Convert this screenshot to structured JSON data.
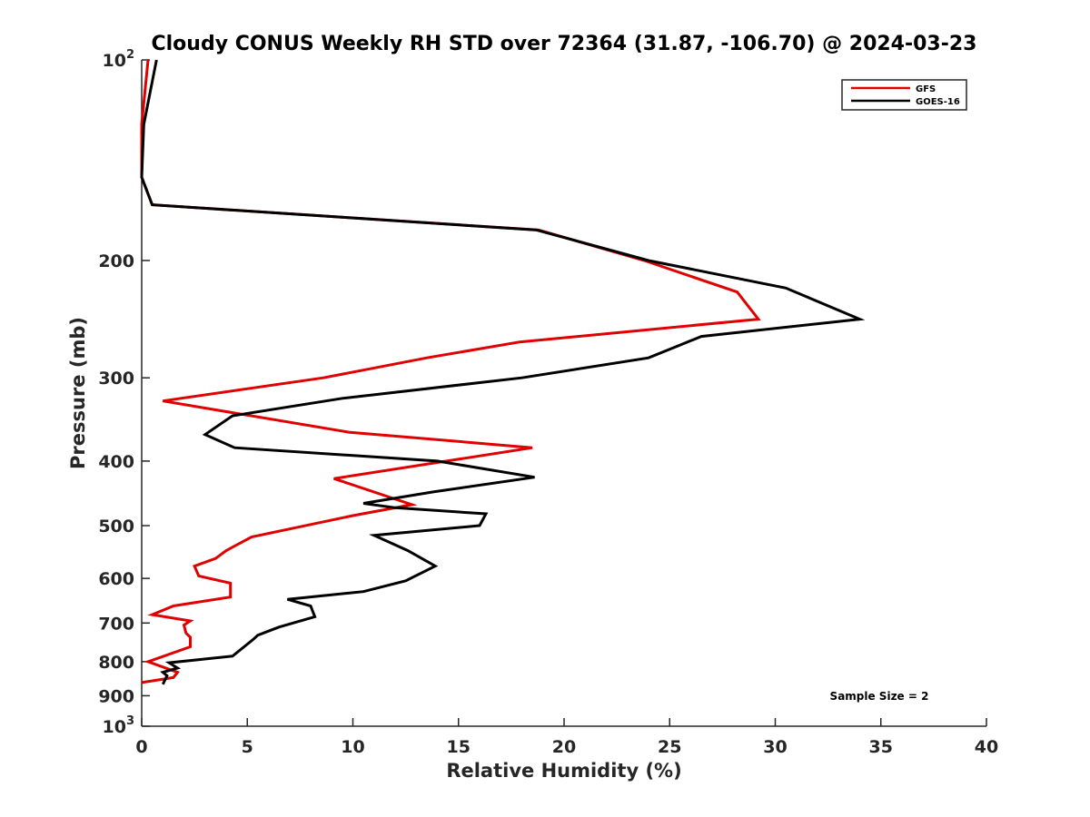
{
  "chart_data": {
    "type": "line",
    "title": "Cloudy CONUS Weekly RH STD over 72364 (31.87, -106.70) @ 2024-03-23",
    "xlabel": "Relative Humidity (%)",
    "ylabel": "Pressure (mb)",
    "xlim": [
      0,
      40
    ],
    "ylim": [
      100,
      1000
    ],
    "yscale": "log",
    "y_reversed": true,
    "x_ticks": [
      0,
      5,
      10,
      15,
      20,
      25,
      30,
      35,
      40
    ],
    "x_tick_labels": [
      "0",
      "5",
      "10",
      "15",
      "20",
      "25",
      "30",
      "35",
      "40"
    ],
    "y_ticks": [
      100,
      200,
      300,
      400,
      500,
      600,
      700,
      800,
      900,
      1000
    ],
    "y_tick_labels": [
      {
        "base": "10",
        "exp": "2"
      },
      {
        "base": "200",
        "exp": ""
      },
      {
        "base": "300",
        "exp": ""
      },
      {
        "base": "400",
        "exp": ""
      },
      {
        "base": "500",
        "exp": ""
      },
      {
        "base": "600",
        "exp": ""
      },
      {
        "base": "700",
        "exp": ""
      },
      {
        "base": "800",
        "exp": ""
      },
      {
        "base": "900",
        "exp": ""
      },
      {
        "base": "10",
        "exp": "3"
      }
    ],
    "grid": false,
    "legend_position": "top-right",
    "annotation": "Sample Size = 2",
    "series": [
      {
        "name": "GFS",
        "color": "#e00000",
        "points": [
          [
            0.3,
            100
          ],
          [
            0.0,
            125
          ],
          [
            0.0,
            150
          ],
          [
            0.5,
            165
          ],
          [
            18.8,
            180
          ],
          [
            23.8,
            200
          ],
          [
            28.2,
            223
          ],
          [
            29.2,
            245
          ],
          [
            17.9,
            265
          ],
          [
            13.5,
            280
          ],
          [
            8.6,
            300
          ],
          [
            1.0,
            325
          ],
          [
            9.8,
            362
          ],
          [
            18.5,
            382
          ],
          [
            9.1,
            425
          ],
          [
            12.8,
            465
          ],
          [
            10.0,
            483
          ],
          [
            5.2,
            520
          ],
          [
            4.0,
            545
          ],
          [
            3.5,
            560
          ],
          [
            2.5,
            575
          ],
          [
            2.7,
            595
          ],
          [
            4.2,
            610
          ],
          [
            4.2,
            640
          ],
          [
            1.5,
            660
          ],
          [
            0.5,
            680
          ],
          [
            2.3,
            695
          ],
          [
            2.0,
            705
          ],
          [
            2.1,
            725
          ],
          [
            2.3,
            735
          ],
          [
            2.3,
            760
          ],
          [
            0.3,
            800
          ],
          [
            1.7,
            830
          ],
          [
            1.5,
            845
          ],
          [
            0.0,
            860
          ]
        ]
      },
      {
        "name": "GOES-16",
        "color": "#000000",
        "points": [
          [
            0.7,
            100
          ],
          [
            0.1,
            125
          ],
          [
            0.0,
            150
          ],
          [
            0.5,
            165
          ],
          [
            18.7,
            180
          ],
          [
            24.0,
            200
          ],
          [
            30.5,
            220
          ],
          [
            34.0,
            245
          ],
          [
            26.5,
            260
          ],
          [
            24.0,
            280
          ],
          [
            18.0,
            300
          ],
          [
            9.5,
            322
          ],
          [
            4.3,
            342
          ],
          [
            3.0,
            365
          ],
          [
            4.4,
            382
          ],
          [
            14.0,
            400
          ],
          [
            18.6,
            423
          ],
          [
            13.8,
            445
          ],
          [
            10.5,
            463
          ],
          [
            12.0,
            470
          ],
          [
            16.3,
            480
          ],
          [
            16.0,
            500
          ],
          [
            11.0,
            517
          ],
          [
            12.6,
            545
          ],
          [
            13.9,
            575
          ],
          [
            12.5,
            605
          ],
          [
            10.5,
            628
          ],
          [
            6.9,
            645
          ],
          [
            8.0,
            660
          ],
          [
            8.2,
            685
          ],
          [
            6.5,
            710
          ],
          [
            5.5,
            730
          ],
          [
            5.3,
            740
          ],
          [
            4.3,
            785
          ],
          [
            1.3,
            803
          ],
          [
            1.7,
            818
          ],
          [
            1.0,
            830
          ],
          [
            1.2,
            840
          ],
          [
            1.0,
            865
          ]
        ]
      }
    ]
  }
}
